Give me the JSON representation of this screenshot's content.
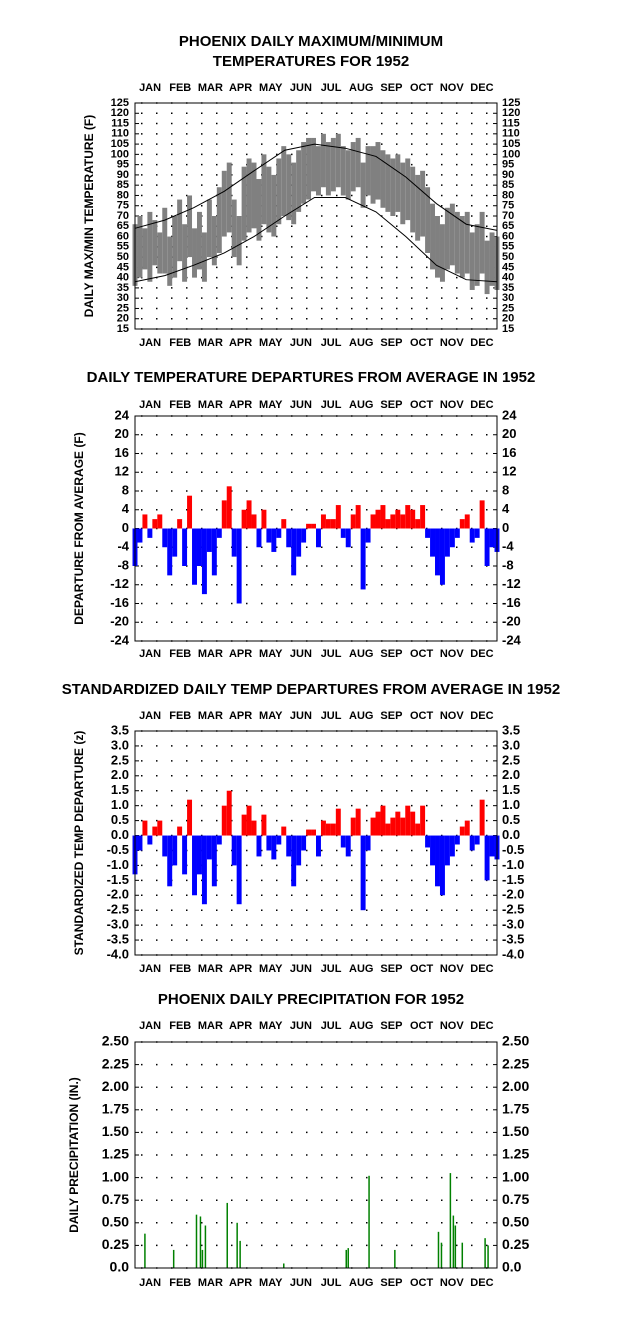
{
  "chart_data": [
    {
      "type": "range",
      "title": [
        "PHOENIX DAILY MAXIMUM/MINIMUM",
        "TEMPERATURES FOR 1952"
      ],
      "y_label": "DAILY MAX/MIN TEMPERATURE (F)",
      "categories": [
        "JAN",
        "FEB",
        "MAR",
        "APR",
        "MAY",
        "JUN",
        "JUL",
        "AUG",
        "SEP",
        "OCT",
        "NOV",
        "DEC"
      ],
      "xlim": [
        1,
        366
      ],
      "ylim": [
        15,
        125
      ],
      "yticks": [
        15,
        20,
        25,
        30,
        35,
        40,
        45,
        50,
        55,
        60,
        65,
        70,
        75,
        80,
        85,
        90,
        95,
        100,
        105,
        110,
        115,
        120,
        125
      ],
      "grid": true,
      "color": "#808080",
      "normal_color": "#000000",
      "x": [
        1,
        6,
        11,
        16,
        21,
        26,
        31,
        36,
        41,
        46,
        51,
        56,
        61,
        66,
        71,
        76,
        81,
        86,
        91,
        96,
        101,
        106,
        111,
        116,
        121,
        126,
        131,
        136,
        141,
        146,
        151,
        156,
        161,
        166,
        171,
        176,
        181,
        186,
        191,
        196,
        201,
        206,
        211,
        216,
        221,
        226,
        231,
        236,
        241,
        246,
        251,
        256,
        261,
        266,
        271,
        276,
        281,
        286,
        291,
        296,
        301,
        306,
        311,
        316,
        321,
        326,
        331,
        336,
        341,
        346,
        351,
        356,
        361,
        366
      ],
      "max_values": [
        66,
        70,
        64,
        72,
        68,
        62,
        74,
        60,
        70,
        78,
        66,
        80,
        64,
        72,
        62,
        78,
        70,
        84,
        92,
        96,
        78,
        70,
        94,
        98,
        96,
        88,
        100,
        94,
        90,
        98,
        104,
        100,
        96,
        102,
        106,
        108,
        108,
        104,
        110,
        106,
        108,
        110,
        104,
        102,
        106,
        108,
        96,
        104,
        104,
        106,
        102,
        100,
        98,
        100,
        96,
        98,
        94,
        90,
        92,
        84,
        76,
        70,
        66,
        74,
        76,
        72,
        70,
        72,
        62,
        66,
        72,
        58,
        62,
        60
      ],
      "min_values": [
        36,
        40,
        44,
        38,
        46,
        42,
        42,
        36,
        40,
        48,
        38,
        50,
        40,
        44,
        38,
        50,
        46,
        52,
        60,
        62,
        50,
        46,
        58,
        62,
        64,
        58,
        66,
        62,
        60,
        66,
        70,
        68,
        66,
        72,
        76,
        78,
        82,
        80,
        84,
        80,
        82,
        84,
        80,
        78,
        82,
        84,
        74,
        80,
        76,
        78,
        74,
        72,
        70,
        72,
        66,
        68,
        62,
        58,
        60,
        52,
        44,
        40,
        38,
        44,
        46,
        42,
        40,
        42,
        34,
        36,
        42,
        32,
        36,
        34
      ],
      "normal_x": [
        1,
        31,
        60,
        91,
        121,
        152,
        182,
        213,
        244,
        274,
        305,
        335,
        366
      ],
      "normal_max": [
        64,
        68,
        74,
        82,
        92,
        102,
        105,
        103,
        99,
        89,
        76,
        66,
        63
      ],
      "normal_min": [
        38,
        41,
        46,
        52,
        60,
        70,
        79,
        79,
        72,
        60,
        46,
        39,
        38
      ]
    },
    {
      "type": "bar",
      "title": "DAILY TEMPERATURE DEPARTURES FROM AVERAGE IN 1952",
      "y_label": "DEPARTURE FROM AVERAGE (F)",
      "categories": [
        "JAN",
        "FEB",
        "MAR",
        "APR",
        "MAY",
        "JUN",
        "JUL",
        "AUG",
        "SEP",
        "OCT",
        "NOV",
        "DEC"
      ],
      "xlim": [
        1,
        366
      ],
      "ylim": [
        -24,
        24
      ],
      "yticks": [
        -24,
        -20,
        -16,
        -12,
        -8,
        -4,
        0,
        4,
        8,
        12,
        16,
        20,
        24
      ],
      "grid": true,
      "pos_color": "#ff0000",
      "neg_color": "#0000ff",
      "x": [
        1,
        6,
        11,
        16,
        21,
        26,
        31,
        36,
        41,
        46,
        51,
        56,
        61,
        66,
        71,
        76,
        81,
        86,
        91,
        96,
        101,
        106,
        111,
        116,
        121,
        126,
        131,
        136,
        141,
        146,
        151,
        156,
        161,
        166,
        171,
        176,
        181,
        186,
        191,
        196,
        201,
        206,
        211,
        216,
        221,
        226,
        231,
        236,
        241,
        246,
        251,
        256,
        261,
        266,
        271,
        276,
        281,
        286,
        291,
        296,
        301,
        306,
        311,
        316,
        321,
        326,
        331,
        336,
        341,
        346,
        351,
        356,
        361,
        366
      ],
      "values": [
        -8,
        -3,
        3,
        -2,
        2,
        3,
        -4,
        -10,
        -6,
        2,
        -8,
        7,
        -12,
        -8,
        -14,
        -5,
        -10,
        -2,
        6,
        9,
        -6,
        -16,
        4,
        6,
        3,
        -4,
        4,
        -3,
        -5,
        -2,
        2,
        -4,
        -10,
        -6,
        -3,
        1,
        1,
        -4,
        3,
        2,
        2,
        5,
        -2,
        -4,
        3,
        5,
        -13,
        -3,
        3,
        4,
        5,
        2,
        3,
        4,
        3,
        5,
        4,
        2,
        5,
        -2,
        -6,
        -10,
        -12,
        -6,
        -4,
        -2,
        2,
        3,
        -3,
        -2,
        6,
        -8,
        -4,
        -5
      ]
    },
    {
      "type": "bar",
      "title": "STANDARDIZED DAILY TEMP DEPARTURES FROM AVERAGE IN 1952",
      "y_label": "STANDARDIZED TEMP DEPARTURE (z)",
      "categories": [
        "JAN",
        "FEB",
        "MAR",
        "APR",
        "MAY",
        "JUN",
        "JUL",
        "AUG",
        "SEP",
        "OCT",
        "NOV",
        "DEC"
      ],
      "xlim": [
        1,
        366
      ],
      "ylim": [
        -4,
        3.5
      ],
      "yticks": [
        {
          "value": -4,
          "label": "-4.0"
        },
        -3.5,
        {
          "value": -3,
          "label": "-3.0"
        },
        -2.5,
        {
          "value": -2,
          "label": "-2.0"
        },
        -1.5,
        {
          "value": -1,
          "label": "-1.0"
        },
        -0.5,
        {
          "value": 0,
          "label": "0.0"
        },
        0.5,
        {
          "value": 1,
          "label": "1.0"
        },
        1.5,
        {
          "value": 2,
          "label": "2.0"
        },
        2.5,
        {
          "value": 3,
          "label": "3.0"
        },
        3.5
      ],
      "grid": true,
      "pos_color": "#ff0000",
      "neg_color": "#0000ff",
      "x": [
        1,
        6,
        11,
        16,
        21,
        26,
        31,
        36,
        41,
        46,
        51,
        56,
        61,
        66,
        71,
        76,
        81,
        86,
        91,
        96,
        101,
        106,
        111,
        116,
        121,
        126,
        131,
        136,
        141,
        146,
        151,
        156,
        161,
        166,
        171,
        176,
        181,
        186,
        191,
        196,
        201,
        206,
        211,
        216,
        221,
        226,
        231,
        236,
        241,
        246,
        251,
        256,
        261,
        266,
        271,
        276,
        281,
        286,
        291,
        296,
        301,
        306,
        311,
        316,
        321,
        326,
        331,
        336,
        341,
        346,
        351,
        356,
        361,
        366
      ],
      "values": [
        -1.3,
        -0.5,
        0.5,
        -0.3,
        0.3,
        0.5,
        -0.7,
        -1.7,
        -1.0,
        0.3,
        -1.3,
        1.2,
        -2.0,
        -1.3,
        -2.3,
        -0.8,
        -1.7,
        -0.3,
        1.0,
        1.5,
        -1.0,
        -2.3,
        0.7,
        1.0,
        0.5,
        -0.7,
        0.7,
        -0.5,
        -0.8,
        -0.3,
        0.3,
        -0.7,
        -1.7,
        -1.0,
        -0.5,
        0.2,
        0.2,
        -0.7,
        0.5,
        0.4,
        0.4,
        0.9,
        -0.4,
        -0.7,
        0.6,
        0.9,
        -2.5,
        -0.5,
        0.6,
        0.8,
        1.0,
        0.4,
        0.6,
        0.8,
        0.6,
        1.0,
        0.8,
        0.4,
        1.0,
        -0.4,
        -1.0,
        -1.7,
        -2.0,
        -1.0,
        -0.7,
        -0.3,
        0.3,
        0.5,
        -0.5,
        -0.3,
        1.2,
        -1.5,
        -0.7,
        -0.8
      ]
    },
    {
      "type": "bar",
      "title": "PHOENIX DAILY PRECIPITATION FOR 1952",
      "y_label": "DAILY PRECIPITATION (IN.)",
      "categories": [
        "JAN",
        "FEB",
        "MAR",
        "APR",
        "MAY",
        "JUN",
        "JUL",
        "AUG",
        "SEP",
        "OCT",
        "NOV",
        "DEC"
      ],
      "xlim": [
        1,
        366
      ],
      "ylim": [
        0,
        2.5
      ],
      "yticks": [
        {
          "value": 0,
          "label": "0.0"
        },
        {
          "value": 0.25,
          "label": "0.25"
        },
        {
          "value": 0.5,
          "label": "0.50"
        },
        {
          "value": 0.75,
          "label": "0.75"
        },
        {
          "value": 1,
          "label": "1.00"
        },
        {
          "value": 1.25,
          "label": "1.25"
        },
        {
          "value": 1.5,
          "label": "1.50"
        },
        {
          "value": 1.75,
          "label": "1.75"
        },
        {
          "value": 2,
          "label": "2.00"
        },
        {
          "value": 2.25,
          "label": "2.25"
        },
        {
          "value": 2.5,
          "label": "2.50"
        }
      ],
      "grid": true,
      "color": "#008000",
      "x": [
        11,
        40,
        63,
        67,
        69,
        72,
        94,
        104,
        107,
        151,
        214,
        216,
        237,
        263,
        307,
        310,
        319,
        322,
        324,
        331,
        354,
        357
      ],
      "values": [
        0.38,
        0.2,
        0.59,
        0.57,
        0.2,
        0.47,
        0.72,
        0.5,
        0.3,
        0.05,
        0.2,
        0.22,
        1.02,
        0.2,
        0.4,
        0.28,
        1.05,
        0.58,
        0.47,
        0.28,
        0.33,
        0.25
      ]
    }
  ]
}
